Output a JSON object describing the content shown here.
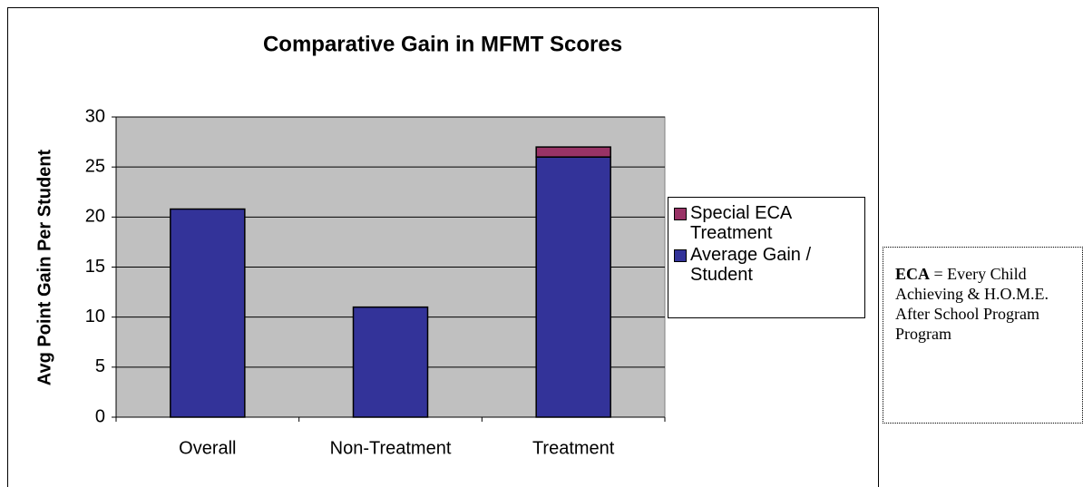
{
  "chart_data": {
    "type": "stacked-bar",
    "title": "Comparative Gain in MFMT Scores",
    "y_label": "Avg Point Gain Per Student",
    "categories": [
      "Overall",
      "Non-Treatment",
      "Treatment"
    ],
    "series": [
      {
        "name": "Average Gain / Student",
        "color": "#333399",
        "values": [
          20.8,
          11,
          26
        ]
      },
      {
        "name": "Special ECA Treatment",
        "color": "#993366",
        "values": [
          null,
          null,
          1
        ]
      }
    ],
    "ylim": [
      0,
      30
    ],
    "yticks": [
      0,
      5,
      10,
      15,
      20,
      25,
      30
    ],
    "grid": true,
    "legend": "right",
    "annotation": {
      "term": "ECA",
      "definition": "= Every Child Achieving & H.O.M.E. After School Program Program"
    }
  }
}
